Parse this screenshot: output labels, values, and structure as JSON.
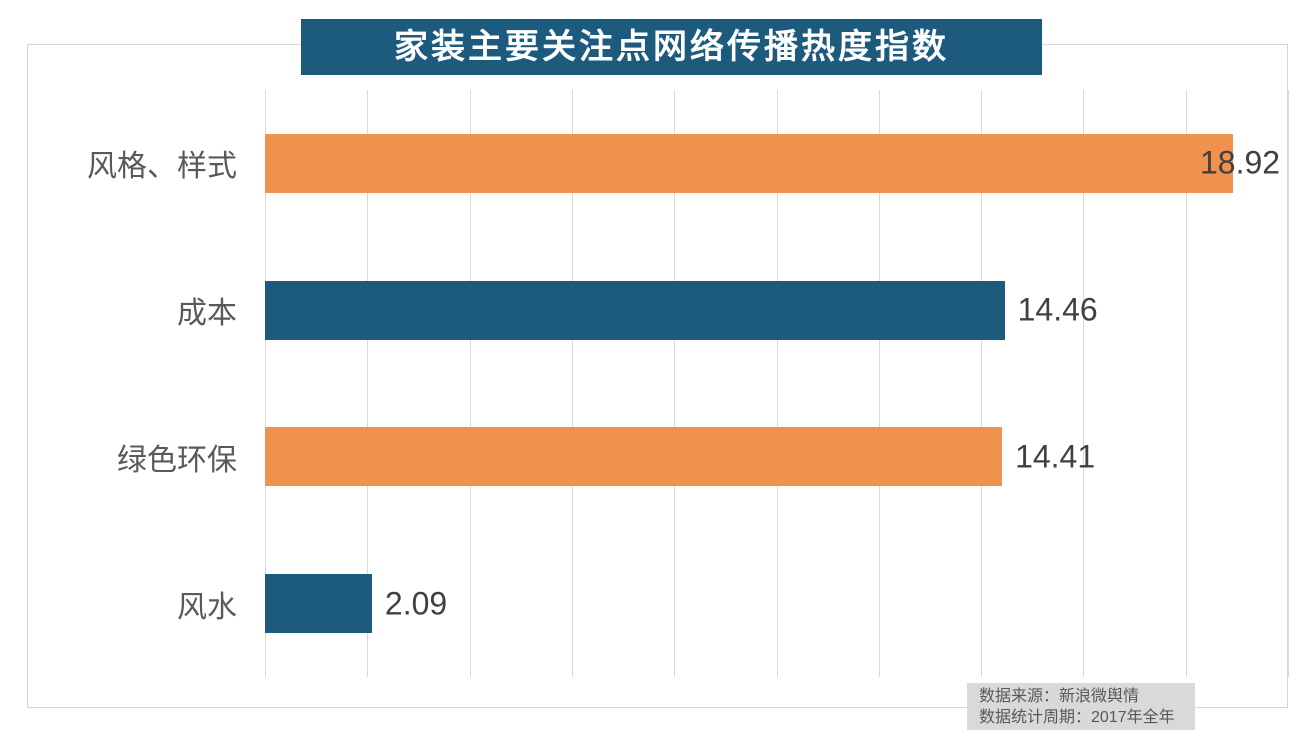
{
  "title": "家装主要关注点网络传播热度指数",
  "chart_data": {
    "type": "bar",
    "orientation": "horizontal",
    "title": "家装主要关注点网络传播热度指数",
    "categories": [
      "风格、样式",
      "成本",
      "绿色环保",
      "风水"
    ],
    "values": [
      18.92,
      14.46,
      14.41,
      2.09
    ],
    "value_labels": [
      "18.92",
      "14.46",
      "14.41",
      "2.09"
    ],
    "bar_colors": [
      "#f0914d",
      "#1c5b7e",
      "#f0914d",
      "#1c5b7e"
    ],
    "xlim": [
      0,
      20
    ],
    "grid_step": 2,
    "grid": "vertical-only",
    "legend": "none"
  },
  "footer": {
    "line1": "数据来源：新浪微舆情",
    "line2": "数据统计周期：2017年全年"
  },
  "colors": {
    "title_bg": "#1c5b7e",
    "title_text": "#ffffff",
    "bar_orange": "#f0914d",
    "bar_teal": "#1c5b7e",
    "gridline": "#d9d9d9",
    "frame_border": "#d6d6d6",
    "category_text": "#595959",
    "value_text": "#404040",
    "footer_bg": "#d9d9d9",
    "footer_text": "#595959"
  }
}
